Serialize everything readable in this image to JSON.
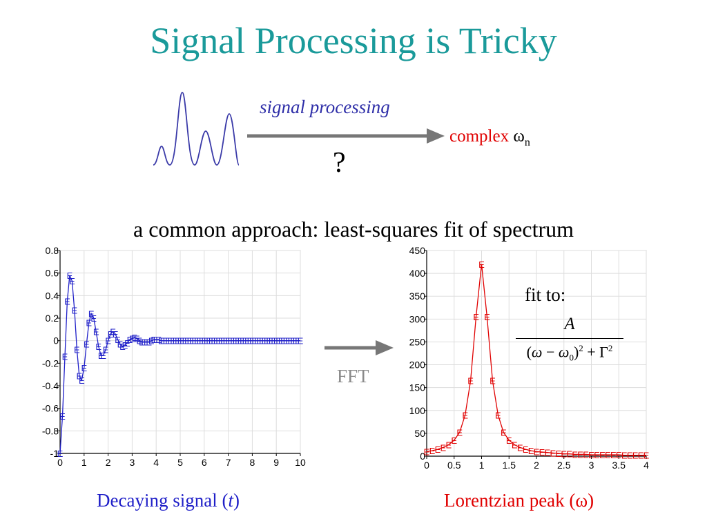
{
  "title": "Signal Processing is Tricky",
  "top_diagram": {
    "arrow_label": "signal processing",
    "question": "?",
    "result_text": "complex",
    "result_symbol": "ω",
    "result_subscript": "n",
    "colors": {
      "peaks": "#3a3aa8",
      "arrow": "#777777",
      "result": "#e00000"
    }
  },
  "approach_text": "a common approach: least-squares fit of spectrum",
  "fft_label": "FFT",
  "fit_label": "fit to:",
  "formula": {
    "numerator": "A",
    "denominator_parts": [
      "(",
      "ω",
      " − ",
      "ω",
      "0",
      ")",
      "2",
      " + Γ",
      "2"
    ]
  },
  "captions": {
    "left_prefix": "Decaying signal (",
    "left_var": "t",
    "left_suffix": ")",
    "right": "Lorentzian peak (ω)"
  },
  "chart_data": [
    {
      "type": "line",
      "title": "",
      "xlabel": "",
      "ylabel": "",
      "xlim": [
        0,
        10
      ],
      "ylim": [
        -1,
        0.8
      ],
      "xticks": [
        "0",
        "1",
        "2",
        "3",
        "4",
        "5",
        "6",
        "7",
        "8",
        "9",
        "10"
      ],
      "yticks": [
        "0.8",
        "0.6",
        "0.4",
        "0.2",
        "0",
        "-0.2",
        "-0.4",
        "-0.6",
        "-0.8",
        "-1"
      ],
      "grid": true,
      "marker": "E",
      "color": "#1f1fc8",
      "series": [
        {
          "x": [
            0,
            0.1,
            0.2,
            0.3,
            0.4,
            0.5,
            0.6,
            0.7,
            0.8,
            0.9,
            1.0,
            1.1,
            1.2,
            1.3,
            1.4,
            1.5,
            1.6,
            1.7,
            1.8,
            1.9,
            2.0,
            2.1,
            2.2,
            2.3,
            2.4,
            2.5,
            2.6,
            2.7,
            2.8,
            2.9,
            3.0,
            3.1,
            3.2,
            3.3,
            3.4,
            3.5,
            3.6,
            3.7,
            3.8,
            3.9,
            4.0,
            4.1,
            4.2,
            4.3,
            4.4,
            4.5,
            4.6,
            4.7,
            4.8,
            4.9,
            5.0,
            5.1,
            5.2,
            5.3,
            5.4,
            5.5,
            5.6,
            5.7,
            5.8,
            5.9,
            6.0,
            6.1,
            6.2,
            6.3,
            6.4,
            6.5,
            6.6,
            6.7,
            6.8,
            6.9,
            7.0,
            7.1,
            7.2,
            7.3,
            7.4,
            7.5,
            7.6,
            7.7,
            7.8,
            7.9,
            8.0,
            8.1,
            8.2,
            8.3,
            8.4,
            8.5,
            8.6,
            8.7,
            8.8,
            8.9,
            9.0,
            9.1,
            9.2,
            9.3,
            9.4,
            9.5,
            9.6,
            9.7,
            9.8,
            9.9,
            10.0
          ],
          "y": [
            -1.0,
            -0.67,
            -0.14,
            0.35,
            0.58,
            0.53,
            0.27,
            -0.08,
            -0.31,
            -0.35,
            -0.24,
            -0.03,
            0.16,
            0.24,
            0.2,
            0.08,
            -0.05,
            -0.13,
            -0.13,
            -0.08,
            0.0,
            0.06,
            0.08,
            0.06,
            0.01,
            -0.03,
            -0.05,
            -0.04,
            -0.02,
            0.01,
            0.02,
            0.03,
            0.02,
            0.0,
            -0.01,
            -0.01,
            -0.01,
            -0.01,
            0.0,
            0.01,
            0.01,
            0.01,
            0.0,
            0.0,
            0.0,
            0.0,
            0.0,
            0.0,
            0.0,
            0.0,
            0.0,
            0.0,
            0.0,
            0.0,
            0.0,
            0.0,
            0.0,
            0.0,
            0.0,
            0.0,
            0.0,
            0.0,
            0.0,
            0.0,
            0.0,
            0.0,
            0.0,
            0.0,
            0.0,
            0.0,
            0.0,
            0.0,
            0.0,
            0.0,
            0.0,
            0.0,
            0.0,
            0.0,
            0.0,
            0.0,
            0.0,
            0.0,
            0.0,
            0.0,
            0.0,
            0.0,
            0.0,
            0.0,
            0.0,
            0.0,
            0.0,
            0.0,
            0.0,
            0.0,
            0.0,
            0.0,
            0.0,
            0.0,
            0.0,
            0.0,
            0.0
          ]
        }
      ]
    },
    {
      "type": "line",
      "title": "",
      "xlabel": "",
      "ylabel": "",
      "xlim": [
        0,
        4
      ],
      "ylim": [
        0,
        450
      ],
      "xticks": [
        "0",
        "0.5",
        "1",
        "1.5",
        "2",
        "2.5",
        "3",
        "3.5",
        "4"
      ],
      "yticks": [
        "450",
        "400",
        "350",
        "300",
        "250",
        "200",
        "150",
        "100",
        "50",
        "0"
      ],
      "grid": true,
      "marker": "E",
      "color": "#e00000",
      "series": [
        {
          "x": [
            0,
            0.1,
            0.2,
            0.3,
            0.4,
            0.5,
            0.6,
            0.7,
            0.8,
            0.9,
            1.0,
            1.1,
            1.2,
            1.3,
            1.4,
            1.5,
            1.6,
            1.7,
            1.8,
            1.9,
            2.0,
            2.1,
            2.2,
            2.3,
            2.4,
            2.5,
            2.6,
            2.7,
            2.8,
            2.9,
            3.0,
            3.1,
            3.2,
            3.3,
            3.4,
            3.5,
            3.6,
            3.7,
            3.8,
            3.9,
            4.0
          ],
          "y": [
            10,
            12,
            15,
            19,
            25,
            35,
            52,
            90,
            165,
            305,
            420,
            305,
            165,
            90,
            52,
            35,
            25,
            19,
            15,
            12,
            10,
            9,
            8,
            7,
            6,
            5,
            5,
            4,
            4,
            4,
            3,
            3,
            3,
            3,
            3,
            3,
            2,
            2,
            2,
            2,
            2
          ]
        }
      ]
    }
  ]
}
